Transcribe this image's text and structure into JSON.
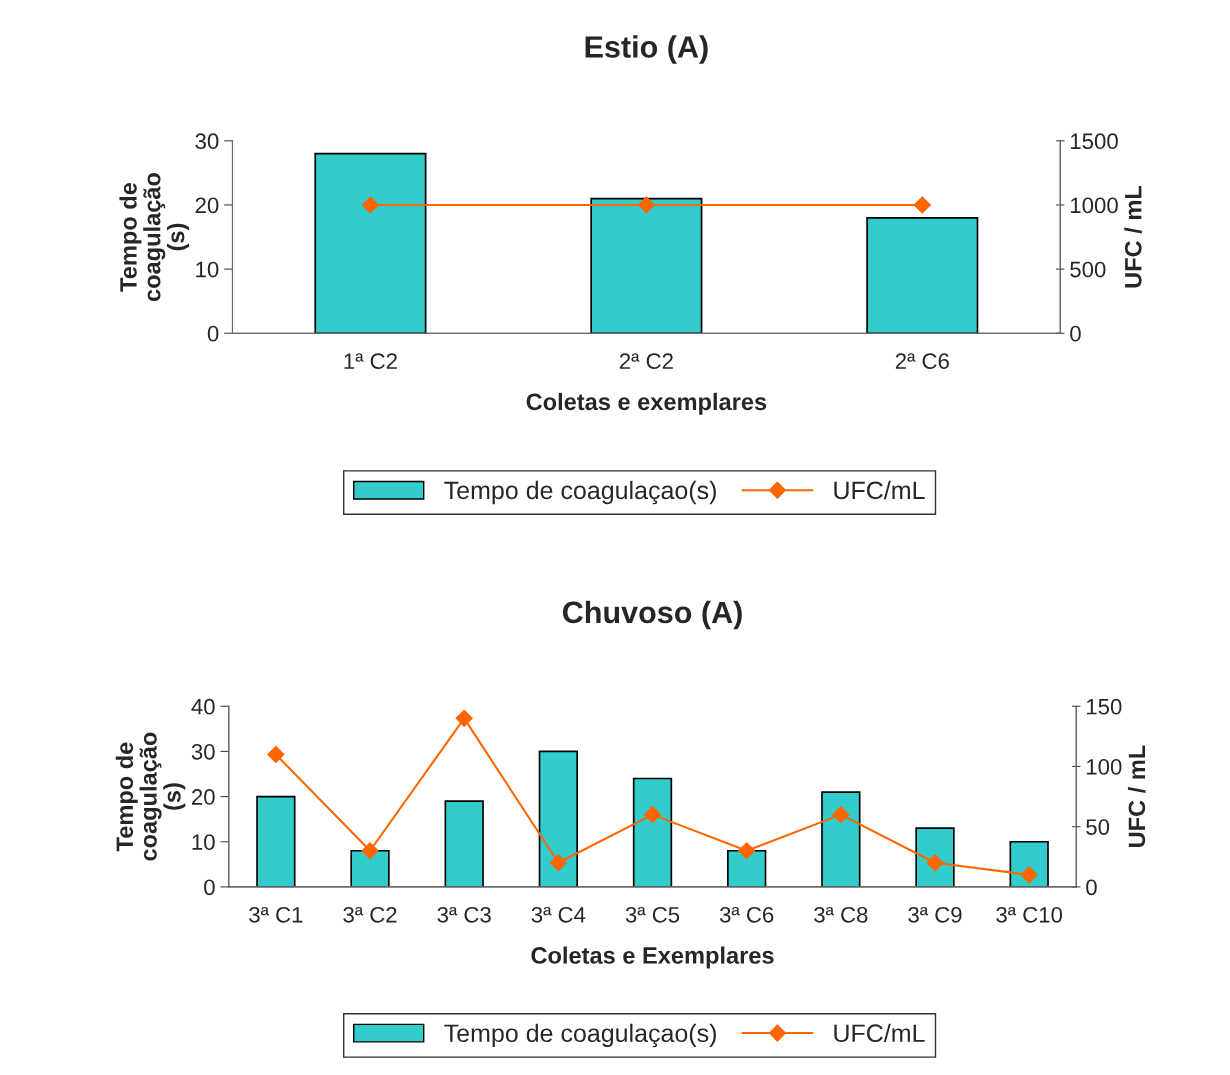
{
  "chart_data": [
    {
      "type": "bar",
      "title": "Estio (A)",
      "xlabel": "Coletas e exemplares",
      "ylabel": "Tempo de\ncoagulação\n(s)",
      "y2label": "UFC / mL",
      "categories": [
        "1ª C2",
        "2ª C2",
        "2ª C6"
      ],
      "series": [
        {
          "name": "Tempo de coagulaçao(s)",
          "type": "bar",
          "color": "#33cccc",
          "values": [
            28,
            21,
            18
          ]
        },
        {
          "name": "UFC/mL",
          "type": "line",
          "axis": "y2",
          "color": "#ff6600",
          "marker": "diamond",
          "values": [
            1000,
            1000,
            1000
          ]
        }
      ],
      "ylim": [
        0,
        30
      ],
      "yticks": [
        0,
        10,
        20,
        30
      ],
      "y2lim": [
        0,
        1500
      ],
      "y2ticks": [
        0,
        500,
        1000,
        1500
      ],
      "legend": "bottom",
      "grid": false
    },
    {
      "type": "bar",
      "title": "Chuvoso (A)",
      "xlabel": "Coletas e Exemplares",
      "ylabel": "Tempo de\ncoagulação\n(s)",
      "y2label": "UFC / mL",
      "categories": [
        "3ª C1",
        "3ª C2",
        "3ª C3",
        "3ª C4",
        "3ª C5",
        "3ª C6",
        "3ª C8",
        "3ª C9",
        "3ª C10"
      ],
      "series": [
        {
          "name": "Tempo de coagulaçao(s)",
          "type": "bar",
          "color": "#33cccc",
          "values": [
            20,
            8,
            19,
            30,
            24,
            8,
            21,
            13,
            10
          ]
        },
        {
          "name": "UFC/mL",
          "type": "line",
          "axis": "y2",
          "color": "#ff6600",
          "marker": "diamond",
          "values": [
            110,
            30,
            140,
            20,
            60,
            30,
            60,
            20,
            10
          ]
        }
      ],
      "ylim": [
        0,
        40
      ],
      "yticks": [
        0,
        10,
        20,
        30,
        40
      ],
      "y2lim": [
        0,
        150
      ],
      "y2ticks": [
        0,
        50,
        100,
        150
      ],
      "legend": "bottom",
      "grid": false
    }
  ]
}
